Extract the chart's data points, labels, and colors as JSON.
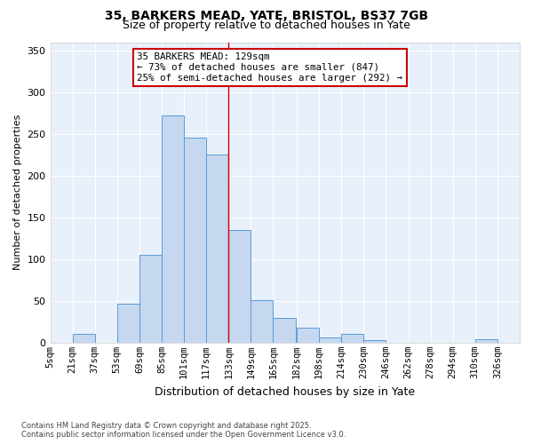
{
  "title1": "35, BARKERS MEAD, YATE, BRISTOL, BS37 7GB",
  "title2": "Size of property relative to detached houses in Yate",
  "xlabel": "Distribution of detached houses by size in Yate",
  "ylabel": "Number of detached properties",
  "bin_labels": [
    "5sqm",
    "21sqm",
    "37sqm",
    "53sqm",
    "69sqm",
    "85sqm",
    "101sqm",
    "117sqm",
    "133sqm",
    "149sqm",
    "165sqm",
    "182sqm",
    "198sqm",
    "214sqm",
    "230sqm",
    "246sqm",
    "262sqm",
    "278sqm",
    "294sqm",
    "310sqm",
    "326sqm"
  ],
  "bin_starts": [
    5,
    21,
    37,
    53,
    69,
    85,
    101,
    117,
    133,
    149,
    165,
    182,
    198,
    214,
    230,
    246,
    262,
    278,
    294,
    310,
    326
  ],
  "bar_heights": [
    0,
    11,
    0,
    47,
    105,
    272,
    246,
    225,
    135,
    51,
    30,
    18,
    6,
    11,
    3,
    0,
    0,
    0,
    0,
    4,
    0
  ],
  "bar_color": "#c5d8f0",
  "bar_edge_color": "#5b9bd5",
  "vline_x": 133,
  "vline_color": "#cc0000",
  "annotation_text": "35 BARKERS MEAD: 129sqm\n← 73% of detached houses are smaller (847)\n25% of semi-detached houses are larger (292) →",
  "annotation_edge_color": "#cc0000",
  "ylim": [
    0,
    360
  ],
  "yticks": [
    0,
    50,
    100,
    150,
    200,
    250,
    300,
    350
  ],
  "xlim_left": 5,
  "xlim_right": 342,
  "bg_color": "#ffffff",
  "plot_bg_color": "#e8f0fb",
  "grid_color": "#ffffff",
  "footnote": "Contains HM Land Registry data © Crown copyright and database right 2025.\nContains public sector information licensed under the Open Government Licence v3.0."
}
